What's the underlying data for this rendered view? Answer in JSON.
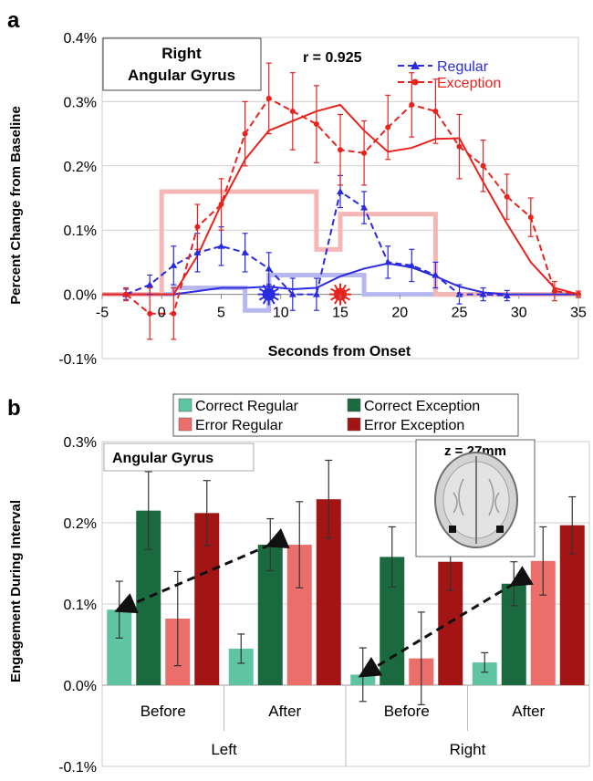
{
  "panel_a": {
    "label": "a",
    "box_title_line1": "Right",
    "box_title_line2": "Angular Gyrus",
    "correlation_label": "r = 0.925",
    "colors": {
      "regular": "#2a2ae0",
      "exception": "#e8231e",
      "regular_box": "#b8b8f0",
      "exception_box": "#f5b7b5"
    },
    "chart_data": {
      "type": "line",
      "xlabel": "Seconds from Onset",
      "ylabel": "Percent Change from Baseline",
      "xlim": [
        -5,
        35
      ],
      "ylim": [
        -0.1,
        0.4
      ],
      "x_ticks": [
        "-5",
        "0",
        "5",
        "10",
        "15",
        "20",
        "25",
        "30",
        "35"
      ],
      "y_ticks": [
        "-0.1%",
        "0.0%",
        "0.1%",
        "0.2%",
        "0.3%",
        "0.4%"
      ],
      "legend": {
        "position": "top-right",
        "entries": [
          "Regular",
          "Exception"
        ]
      },
      "series": [
        {
          "name": "Regular",
          "style": "dashed-triangle",
          "x": [
            -3,
            -1,
            1,
            3,
            5,
            7,
            9,
            11,
            13,
            15,
            17,
            19,
            21,
            23,
            25,
            27,
            29
          ],
          "y": [
            0.0,
            0.015,
            0.045,
            0.065,
            0.075,
            0.065,
            0.04,
            0.0,
            0.0,
            0.16,
            0.135,
            0.05,
            0.045,
            0.03,
            0.0,
            0.0,
            -0.002
          ],
          "err": [
            0.008,
            0.015,
            0.03,
            0.03,
            0.03,
            0.03,
            0.025,
            0.025,
            0.025,
            0.025,
            0.025,
            0.025,
            0.025,
            0.02,
            0.015,
            0.01,
            0.008
          ]
        },
        {
          "name": "Exception",
          "style": "dashed-circle",
          "x": [
            -3,
            -1,
            1,
            3,
            5,
            7,
            9,
            11,
            13,
            15,
            17,
            19,
            21,
            23,
            25,
            27,
            29,
            31,
            33,
            35
          ],
          "y": [
            0.0,
            -0.03,
            -0.03,
            0.105,
            0.14,
            0.25,
            0.305,
            0.285,
            0.265,
            0.225,
            0.22,
            0.26,
            0.295,
            0.285,
            0.23,
            0.2,
            0.152,
            0.12,
            0.005,
            0.0
          ],
          "err": [
            0.01,
            0.04,
            0.04,
            0.035,
            0.04,
            0.05,
            0.055,
            0.06,
            0.06,
            0.055,
            0.05,
            0.05,
            0.05,
            0.05,
            0.05,
            0.04,
            0.035,
            0.03,
            0.015,
            0.005
          ]
        },
        {
          "name": "",
          "style": "fit-regular",
          "x": [
            -5,
            1,
            3,
            5,
            7,
            9,
            11,
            13,
            15,
            17,
            19,
            21,
            23,
            25,
            27,
            29,
            35
          ],
          "y": [
            0.0,
            0.0,
            0.005,
            0.01,
            0.01,
            0.012,
            0.008,
            0.01,
            0.028,
            0.04,
            0.048,
            0.042,
            0.028,
            0.012,
            0.003,
            0.0,
            0.0
          ]
        },
        {
          "name": "",
          "style": "fit-exception",
          "x": [
            -5,
            1,
            3,
            5,
            7,
            9,
            11,
            13,
            15,
            17,
            19,
            21,
            23,
            25,
            27,
            29,
            31,
            33,
            35
          ],
          "y": [
            0.0,
            0.0,
            0.06,
            0.14,
            0.21,
            0.255,
            0.27,
            0.285,
            0.295,
            0.255,
            0.222,
            0.228,
            0.242,
            0.243,
            0.175,
            0.11,
            0.05,
            0.01,
            0.0
          ]
        },
        {
          "name": "",
          "style": "box-regular",
          "x": [
            -5,
            1,
            1,
            7,
            7,
            9,
            9,
            17,
            17,
            35
          ],
          "y": [
            0.0,
            0.0,
            0.01,
            0.01,
            -0.025,
            -0.025,
            0.03,
            0.03,
            0.0,
            0.0
          ]
        },
        {
          "name": "",
          "style": "box-exception",
          "x": [
            -5,
            0,
            0,
            13,
            13,
            15,
            15,
            23,
            23,
            35
          ],
          "y": [
            0.0,
            0.0,
            0.16,
            0.16,
            0.07,
            0.07,
            0.125,
            0.125,
            0.0,
            0.0
          ]
        }
      ],
      "markers": [
        {
          "name": "regular-onset-marker",
          "x": 9,
          "y": 0.0
        },
        {
          "name": "exception-onset-marker",
          "x": 15,
          "y": 0.0
        }
      ]
    }
  },
  "panel_b": {
    "label": "b",
    "box_title": "Angular Gyrus",
    "inset_label": "z = 27mm",
    "colors": {
      "correct_regular": "#5fc4a2",
      "correct_exception": "#1b6a3f",
      "error_regular": "#ec6e6a",
      "error_exception": "#a31515"
    },
    "chart_data": {
      "type": "bar",
      "ylabel": "Engagement During Interval",
      "ylim": [
        -0.1,
        0.3
      ],
      "y_ticks": [
        "-0.1%",
        "0.0%",
        "0.1%",
        "0.2%",
        "0.3%"
      ],
      "categories": [
        "Before",
        "After",
        "Before",
        "After"
      ],
      "groups": [
        "Left",
        "Right"
      ],
      "legend": {
        "position": "top",
        "entries": [
          "Correct Regular",
          "Correct Exception",
          "Error Regular",
          "Error Exception"
        ]
      },
      "series": [
        {
          "name": "Correct Regular",
          "values": [
            0.093,
            0.045,
            0.013,
            0.028
          ],
          "err": [
            0.035,
            0.018,
            0.033,
            0.012
          ]
        },
        {
          "name": "Correct Exception",
          "values": [
            0.215,
            0.173,
            0.158,
            0.125
          ],
          "err": [
            0.048,
            0.032,
            0.037,
            0.027
          ]
        },
        {
          "name": "Error Regular",
          "values": [
            0.082,
            0.173,
            0.033,
            0.153
          ],
          "err": [
            0.058,
            0.053,
            0.057,
            0.042
          ]
        },
        {
          "name": "Error Exception",
          "values": [
            0.212,
            0.229,
            0.152,
            0.197
          ],
          "err": [
            0.04,
            0.048,
            0.035,
            0.035
          ]
        }
      ],
      "arrows": [
        {
          "from_category": 0,
          "from_series": 0,
          "to_category": 1,
          "to_series": 1
        },
        {
          "from_category": 2,
          "from_series": 0,
          "to_category": 3,
          "to_series": 1
        }
      ]
    }
  }
}
